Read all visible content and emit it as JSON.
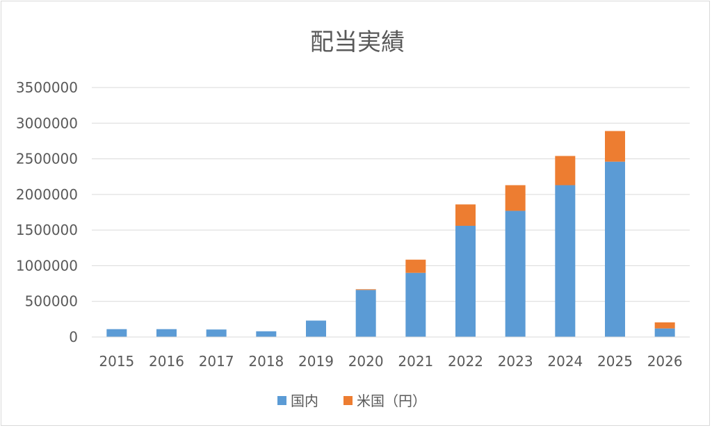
{
  "chart_data": {
    "type": "bar",
    "stacked": true,
    "title": "配当実績",
    "xlabel": "",
    "ylabel": "",
    "categories": [
      "2015",
      "2016",
      "2017",
      "2018",
      "2019",
      "2020",
      "2021",
      "2022",
      "2023",
      "2024",
      "2025",
      "2026"
    ],
    "series": [
      {
        "name": "国内",
        "color": "#5b9bd5",
        "values": [
          110000,
          110000,
          105000,
          80000,
          230000,
          660000,
          900000,
          1560000,
          1770000,
          2130000,
          2460000,
          120000
        ]
      },
      {
        "name": "米国（円）",
        "color": "#ed7d31",
        "values": [
          0,
          0,
          0,
          0,
          0,
          10000,
          185000,
          300000,
          360000,
          410000,
          430000,
          85000
        ]
      }
    ],
    "ylim": [
      0,
      3500000
    ],
    "yticks": [
      "0",
      "500000",
      "1000000",
      "1500000",
      "2000000",
      "2500000",
      "3000000",
      "3500000"
    ],
    "grid": true,
    "legend_position": "bottom"
  }
}
